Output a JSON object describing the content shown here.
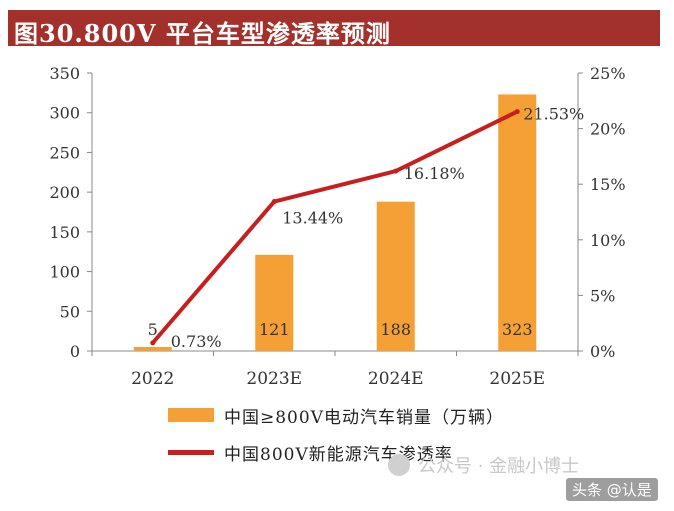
{
  "title": "图30.800V 平台车型渗透率预测",
  "chart_data": {
    "type": "bar",
    "categories": [
      "2022",
      "2023E",
      "2024E",
      "2025E"
    ],
    "series": [
      {
        "name": "中国≥800V电动汽车销量（万辆）",
        "type": "bar",
        "axis": "left",
        "values": [
          5,
          121,
          188,
          323
        ],
        "labels": [
          "5",
          "121",
          "188",
          "323"
        ],
        "color": "#f5a034"
      },
      {
        "name": "中国800V新能源汽车渗透率",
        "type": "line",
        "axis": "right",
        "values": [
          0.73,
          13.44,
          16.18,
          21.53
        ],
        "labels": [
          "0.73%",
          "13.44%",
          "16.18%",
          "21.53%"
        ],
        "color": "#c81e1e"
      }
    ],
    "y_left": {
      "min": 0,
      "max": 350,
      "ticks": [
        "0",
        "50",
        "100",
        "150",
        "200",
        "250",
        "300",
        "350"
      ]
    },
    "y_right": {
      "min": 0,
      "max": 25,
      "ticks": [
        "0%",
        "5%",
        "10%",
        "15%",
        "20%",
        "25%"
      ]
    },
    "grid": false,
    "legend_position": "bottom"
  },
  "legend": {
    "bar_label": "中国≥800V电动汽车销量（万辆）",
    "line_label": "中国800V新能源汽车渗透率"
  },
  "watermark": "公众号 · 金融小博士",
  "credit": "头条 @认是"
}
